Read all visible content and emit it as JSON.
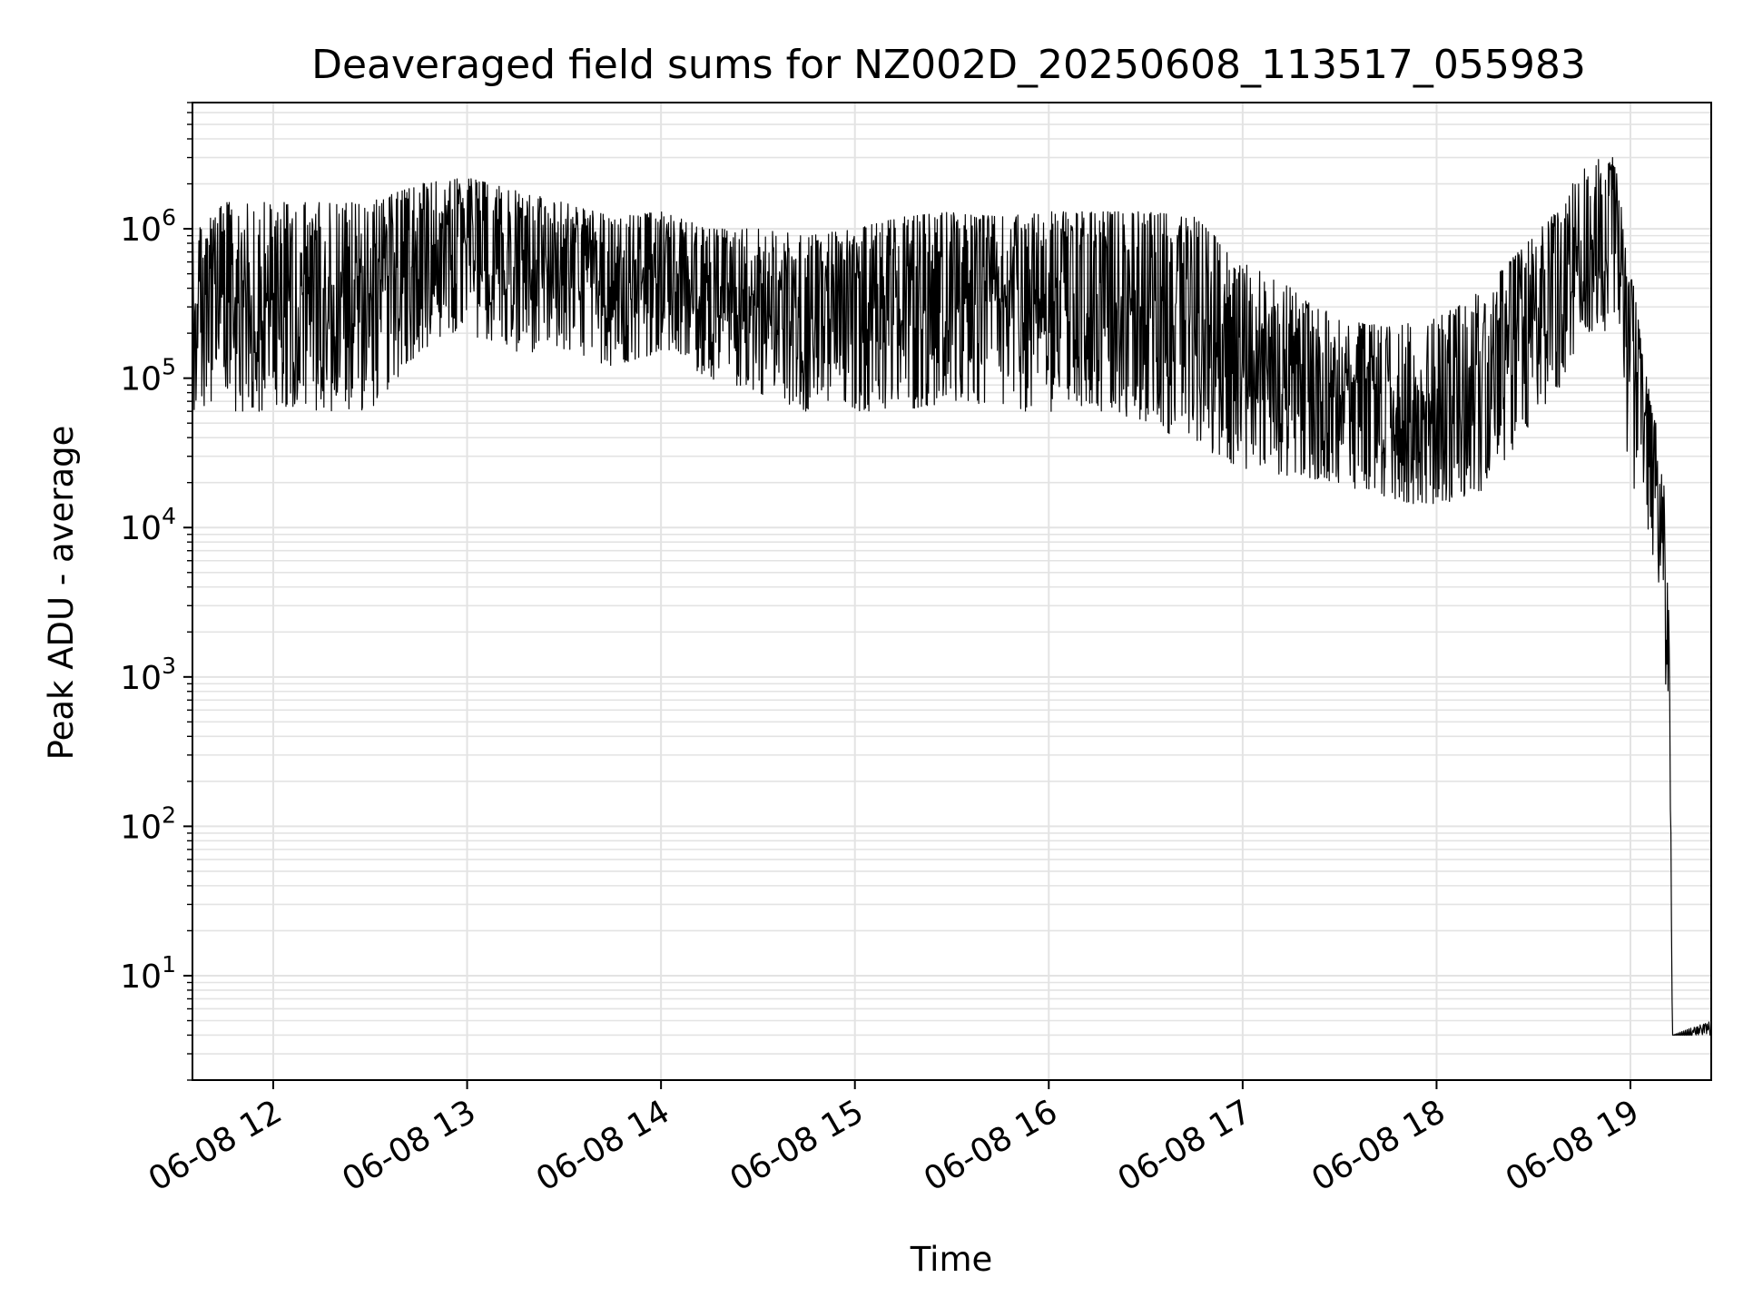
{
  "chart_data": {
    "type": "line",
    "title": "Deaveraged field sums for NZ002D_20250608_113517_055983",
    "xlabel": "Time",
    "ylabel": "Peak ADU - average",
    "yscale": "log",
    "ylim": [
      2,
      7000000
    ],
    "xlim": [
      "06-08 11:35",
      "06-08 19:25"
    ],
    "grid": true,
    "line_color": "#000000",
    "grid_color": "#e3e3e3",
    "x_ticks": [
      "06-08 12",
      "06-08 13",
      "06-08 14",
      "06-08 15",
      "06-08 16",
      "06-08 17",
      "06-08 18",
      "06-08 19"
    ],
    "y_ticks": [
      {
        "base": "10",
        "exp": "1",
        "value": 10
      },
      {
        "base": "10",
        "exp": "2",
        "value": 100
      },
      {
        "base": "10",
        "exp": "3",
        "value": 1000
      },
      {
        "base": "10",
        "exp": "4",
        "value": 10000
      },
      {
        "base": "10",
        "exp": "5",
        "value": 100000
      },
      {
        "base": "10",
        "exp": "6",
        "value": 1000000
      }
    ],
    "series": [
      {
        "envelope": [
          {
            "time": "06-08 11:35",
            "low": 60000,
            "high": 1000000
          },
          {
            "time": "06-08 11:45",
            "low": 60000,
            "high": 1500000
          },
          {
            "time": "06-08 12:00",
            "low": 60000,
            "high": 1500000
          },
          {
            "time": "06-08 12:15",
            "low": 60000,
            "high": 1500000
          },
          {
            "time": "06-08 12:30",
            "low": 60000,
            "high": 1500000
          },
          {
            "time": "06-08 12:45",
            "low": 150000,
            "high": 2000000
          },
          {
            "time": "06-08 13:00",
            "low": 200000,
            "high": 2200000
          },
          {
            "time": "06-08 13:15",
            "low": 150000,
            "high": 1800000
          },
          {
            "time": "06-08 13:30",
            "low": 150000,
            "high": 1500000
          },
          {
            "time": "06-08 13:45",
            "low": 120000,
            "high": 1200000
          },
          {
            "time": "06-08 14:00",
            "low": 150000,
            "high": 1300000
          },
          {
            "time": "06-08 14:15",
            "low": 100000,
            "high": 1000000
          },
          {
            "time": "06-08 14:30",
            "low": 80000,
            "high": 1000000
          },
          {
            "time": "06-08 14:45",
            "low": 60000,
            "high": 900000
          },
          {
            "time": "06-08 15:00",
            "low": 60000,
            "high": 1000000
          },
          {
            "time": "06-08 15:15",
            "low": 60000,
            "high": 1200000
          },
          {
            "time": "06-08 15:30",
            "low": 70000,
            "high": 1300000
          },
          {
            "time": "06-08 15:45",
            "low": 60000,
            "high": 1200000
          },
          {
            "time": "06-08 16:00",
            "low": 60000,
            "high": 1300000
          },
          {
            "time": "06-08 16:15",
            "low": 60000,
            "high": 1300000
          },
          {
            "time": "06-08 16:30",
            "low": 50000,
            "high": 1300000
          },
          {
            "time": "06-08 16:45",
            "low": 35000,
            "high": 1200000
          },
          {
            "time": "06-08 17:00",
            "low": 25000,
            "high": 600000
          },
          {
            "time": "06-08 17:15",
            "low": 22000,
            "high": 400000
          },
          {
            "time": "06-08 17:30",
            "low": 20000,
            "high": 250000
          },
          {
            "time": "06-08 17:45",
            "low": 15000,
            "high": 220000
          },
          {
            "time": "06-08 18:00",
            "low": 14000,
            "high": 250000
          },
          {
            "time": "06-08 18:15",
            "low": 18000,
            "high": 400000
          },
          {
            "time": "06-08 18:30",
            "low": 50000,
            "high": 900000
          },
          {
            "time": "06-08 18:40",
            "low": 100000,
            "high": 1500000
          },
          {
            "time": "06-08 18:45",
            "low": 200000,
            "high": 3000000
          },
          {
            "time": "06-08 18:55",
            "low": 200000,
            "high": 3000000
          },
          {
            "time": "06-08 19:00",
            "low": 20000,
            "high": 600000
          },
          {
            "time": "06-08 19:05",
            "low": 10000,
            "high": 100000
          },
          {
            "time": "06-08 19:10",
            "low": 3000,
            "high": 30000
          },
          {
            "time": "06-08 19:12",
            "low": 200,
            "high": 3000
          },
          {
            "time": "06-08 19:13",
            "low": 4,
            "high": 4
          },
          {
            "time": "06-08 19:25",
            "low": 4,
            "high": 5
          }
        ]
      }
    ]
  }
}
